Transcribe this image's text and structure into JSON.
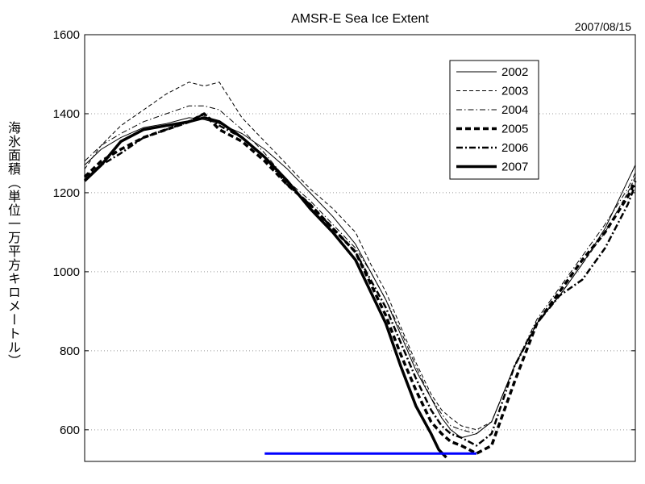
{
  "chart_data": {
    "type": "line",
    "title": "AMSR-E Sea Ice Extent",
    "date": "2007/08/15",
    "ylabel": "海氷面積（単位一万平方キロメートル）",
    "ylim": [
      520,
      1600
    ],
    "yticks": [
      600,
      800,
      1000,
      1200,
      1400,
      1600
    ],
    "xlim": [
      1,
      365
    ],
    "grid": "horizontal dotted",
    "legend_placement": "top-right",
    "threshold_line": {
      "value": 540,
      "x_range": [
        120,
        260
      ],
      "color": "#0000ff"
    },
    "series": [
      {
        "name": "2002",
        "style": "thin-solid",
        "x": [
          1,
          12,
          25,
          40,
          55,
          70,
          80,
          90,
          105,
          120,
          135,
          150,
          165,
          180,
          190,
          200,
          210,
          220,
          230,
          237,
          243,
          250,
          260,
          270,
          285,
          300,
          315,
          330,
          345,
          360,
          365
        ],
        "y": [
          1270,
          1310,
          1340,
          1365,
          1375,
          1390,
          1385,
          1375,
          1350,
          1310,
          1260,
          1200,
          1140,
          1070,
          1000,
          930,
          840,
          750,
          680,
          630,
          600,
          580,
          590,
          620,
          760,
          870,
          940,
          1020,
          1110,
          1230,
          1270
        ]
      },
      {
        "name": "2003",
        "style": "dashed",
        "x": [
          1,
          12,
          25,
          40,
          55,
          70,
          80,
          90,
          105,
          120,
          135,
          150,
          165,
          180,
          190,
          200,
          210,
          220,
          230,
          237,
          243,
          250,
          260,
          270,
          285,
          300,
          315,
          330,
          345,
          360,
          365
        ],
        "y": [
          1260,
          1320,
          1370,
          1410,
          1450,
          1480,
          1470,
          1480,
          1390,
          1330,
          1270,
          1210,
          1160,
          1100,
          1020,
          950,
          860,
          770,
          690,
          650,
          630,
          610,
          600,
          620,
          760,
          870,
          940,
          1020,
          1100,
          1200,
          1240
        ]
      },
      {
        "name": "2004",
        "style": "dash-dot-thin",
        "x": [
          1,
          12,
          25,
          40,
          55,
          70,
          80,
          90,
          105,
          120,
          135,
          150,
          165,
          180,
          190,
          200,
          210,
          220,
          230,
          237,
          243,
          250,
          260,
          270,
          285,
          300,
          315,
          330,
          345,
          360,
          365
        ],
        "y": [
          1280,
          1320,
          1350,
          1380,
          1400,
          1420,
          1420,
          1410,
          1360,
          1300,
          1230,
          1180,
          1120,
          1060,
          1000,
          930,
          850,
          760,
          680,
          640,
          610,
          600,
          590,
          620,
          760,
          880,
          960,
          1040,
          1120,
          1210,
          1250
        ]
      },
      {
        "name": "2005",
        "style": "thick-dashed",
        "x": [
          1,
          12,
          25,
          40,
          55,
          70,
          80,
          90,
          105,
          120,
          135,
          150,
          165,
          180,
          190,
          200,
          210,
          220,
          230,
          237,
          243,
          250,
          260,
          270,
          285,
          300,
          315,
          330,
          345,
          360,
          365
        ],
        "y": [
          1240,
          1280,
          1310,
          1340,
          1360,
          1380,
          1400,
          1360,
          1330,
          1280,
          1220,
          1170,
          1110,
          1050,
          970,
          890,
          790,
          700,
          620,
          590,
          570,
          560,
          540,
          560,
          720,
          870,
          950,
          1030,
          1100,
          1190,
          1230
        ]
      },
      {
        "name": "2006",
        "style": "thick-dash-dot",
        "x": [
          1,
          12,
          25,
          40,
          55,
          70,
          80,
          90,
          105,
          120,
          135,
          150,
          165,
          180,
          190,
          200,
          210,
          220,
          230,
          237,
          243,
          250,
          260,
          270,
          285,
          300,
          315,
          330,
          345,
          360,
          365
        ],
        "y": [
          1240,
          1270,
          1300,
          1340,
          1360,
          1380,
          1400,
          1370,
          1340,
          1290,
          1220,
          1170,
          1110,
          1050,
          980,
          910,
          820,
          730,
          650,
          610,
          590,
          580,
          560,
          590,
          760,
          870,
          940,
          980,
          1060,
          1170,
          1220
        ]
      },
      {
        "name": "2007",
        "style": "thick-solid",
        "x": [
          1,
          12,
          25,
          40,
          55,
          70,
          80,
          90,
          105,
          120,
          135,
          150,
          165,
          180,
          190,
          200,
          210,
          220,
          230,
          235,
          240
        ],
        "y": [
          1230,
          1270,
          1330,
          1360,
          1370,
          1380,
          1390,
          1380,
          1340,
          1290,
          1230,
          1160,
          1100,
          1030,
          950,
          870,
          760,
          660,
          590,
          550,
          530
        ]
      }
    ]
  }
}
